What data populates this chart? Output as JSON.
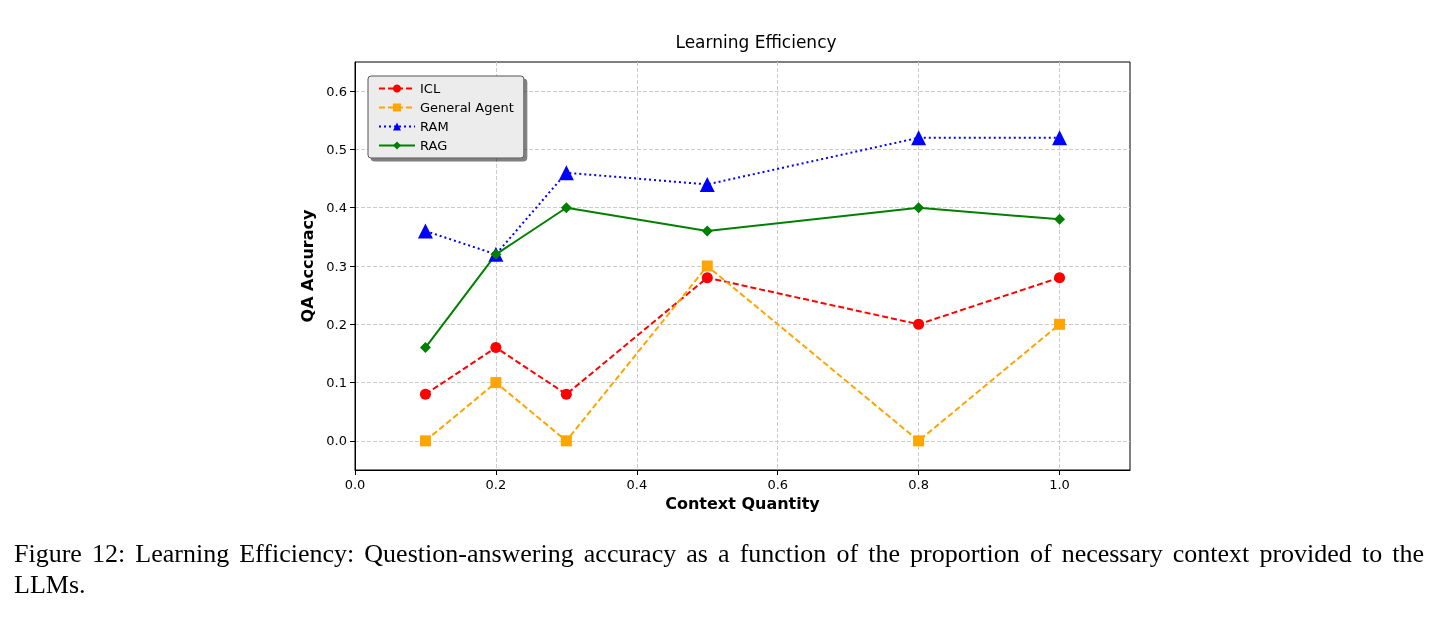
{
  "chart_data": {
    "type": "line",
    "title": "Learning Efficiency",
    "xlabel": "Context Quantity",
    "ylabel": "QA Accuracy",
    "annotations": [
      "Figure 12: Learning Efficiency: Question-answering accuracy as a function of the proportion of necessary context provided to the LLMs."
    ],
    "x": [
      0.1,
      0.2,
      0.3,
      0.5,
      0.8,
      1.0
    ],
    "series": [
      {
        "name": "ICL",
        "color": "#ff0000",
        "marker": "circle",
        "line_style": "dashed",
        "values": [
          0.08,
          0.16,
          0.08,
          0.28,
          0.2,
          0.28
        ]
      },
      {
        "name": "General Agent",
        "color": "#ffa500",
        "marker": "square",
        "line_style": "dashed",
        "values": [
          0,
          0.1,
          0,
          0.3,
          0,
          0.2
        ]
      },
      {
        "name": "RAM",
        "color": "#0000ff",
        "marker": "triangle",
        "line_style": "dotted",
        "values": [
          0.36,
          0.32,
          0.46,
          0.44,
          0.52,
          0.52
        ]
      },
      {
        "name": "RAG",
        "color": "#008000",
        "marker": "diamond",
        "line_style": "solid",
        "values": [
          0.16,
          0.32,
          0.4,
          0.36,
          0.4,
          0.38
        ]
      }
    ],
    "xlim": [
      0,
      1.1
    ],
    "ylim": [
      -0.05,
      0.65
    ],
    "xticks": [
      {
        "value": 0,
        "label": "0.0"
      },
      0.2,
      0.4,
      0.6,
      0.8,
      {
        "value": 1,
        "label": "1.0"
      }
    ],
    "yticks": [
      {
        "value": 0,
        "label": "0.0"
      },
      0.1,
      0.2,
      0.3,
      0.4,
      0.5,
      0.6
    ],
    "grid": true,
    "legend": "top left"
  }
}
